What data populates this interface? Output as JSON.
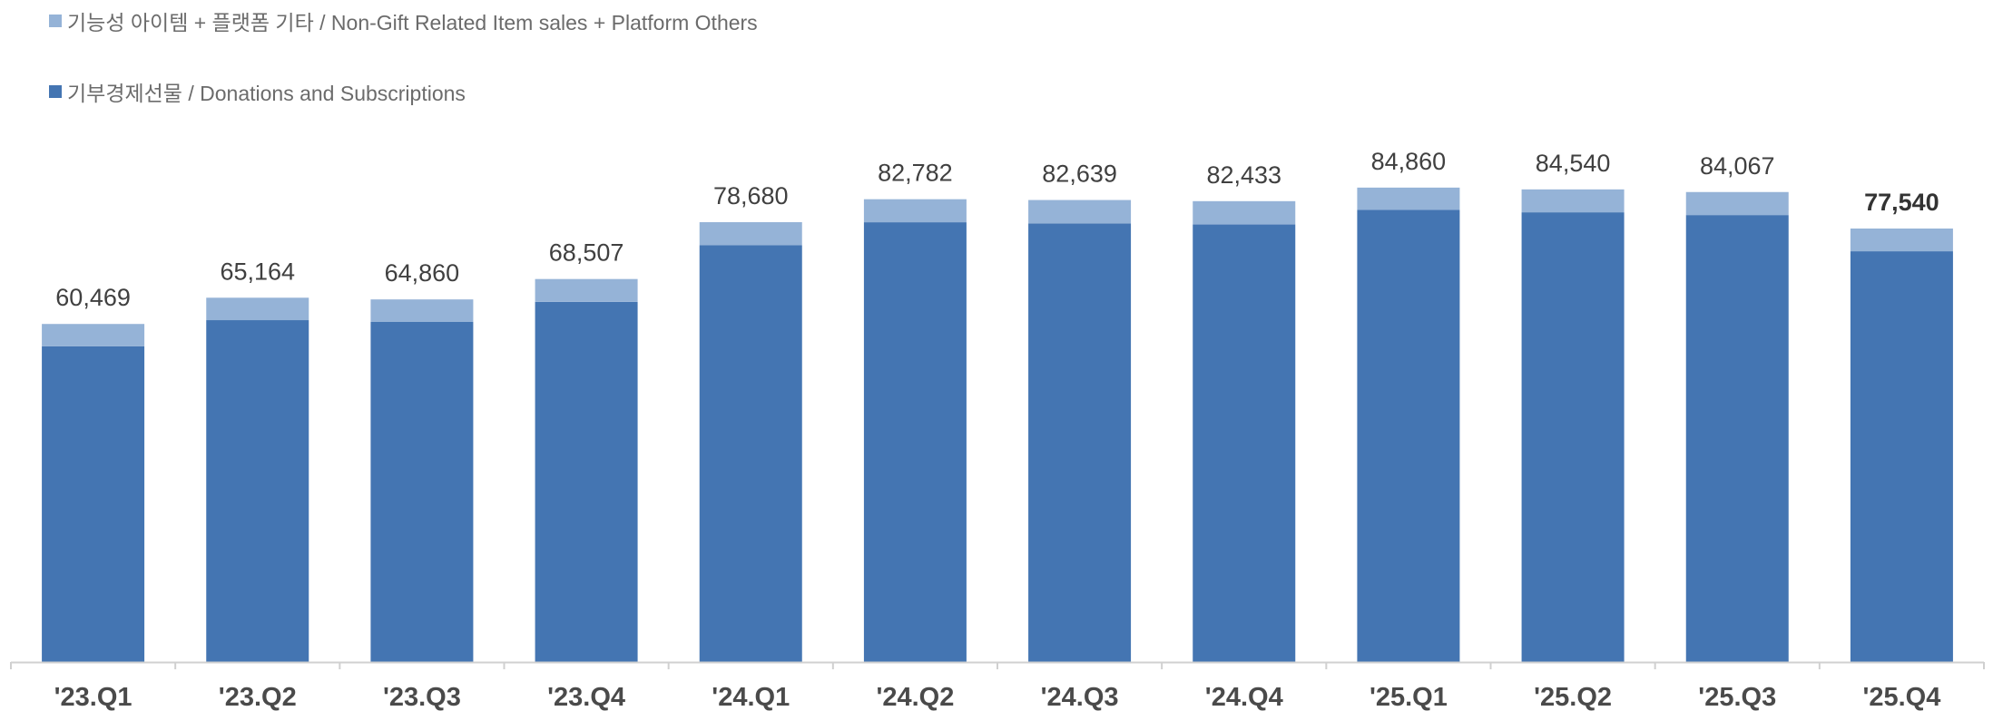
{
  "legend": {
    "items": [
      {
        "label": "기능성 아이템 + 플랫폼 기타 / Non-Gift Related Item sales + Platform Others",
        "color": "#95b3d7"
      },
      {
        "label": "기부경제선물 / Donations and Subscriptions",
        "color": "#4475b2"
      }
    ]
  },
  "chart_data": {
    "type": "bar",
    "stacked": true,
    "categories": [
      "'23.Q1",
      "'23.Q2",
      "'23.Q3",
      "'23.Q4",
      "'24.Q1",
      "'24.Q2",
      "'24.Q3",
      "'24.Q4",
      "'25.Q1",
      "'25.Q2",
      "'25.Q3",
      "'25.Q4"
    ],
    "series": [
      {
        "name": "기부경제선물 / Donations and Subscriptions",
        "color": "#4475b2",
        "values": [
          56460,
          61150,
          60830,
          64420,
          74540,
          78660,
          78460,
          78260,
          80870,
          80440,
          79950,
          73470
        ]
      },
      {
        "name": "기능성 아이템 + 플랫폼 기타 / Non-Gift Related Item sales + Platform Others",
        "color": "#95b3d7",
        "values": [
          4009,
          4014,
          4030,
          4087,
          4140,
          4122,
          4179,
          4173,
          3990,
          4100,
          4117,
          4070
        ]
      }
    ],
    "totals": [
      60469,
      65164,
      64860,
      68507,
      78680,
      82782,
      82639,
      82433,
      84860,
      84540,
      84067,
      77540
    ],
    "total_labels": [
      "60,469",
      "65,164",
      "64,860",
      "68,507",
      "78,680",
      "82,782",
      "82,639",
      "82,433",
      "84,860",
      "84,540",
      "84,067",
      "77,540"
    ],
    "emphasized_index": 11,
    "ylim": [
      0,
      85000
    ],
    "grid": false,
    "legend_position": "top-left",
    "title": "",
    "xlabel": "",
    "ylabel": ""
  }
}
